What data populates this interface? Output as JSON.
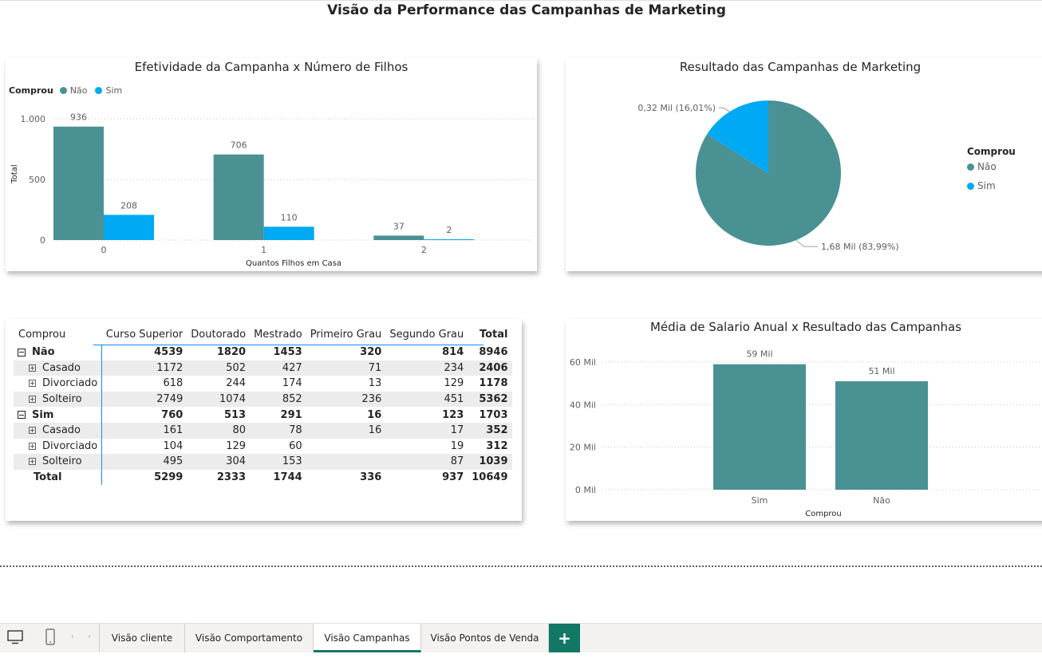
{
  "page": {
    "title": "Visão da Performance das Campanhas de Marketing"
  },
  "colors": {
    "nao": "#4a9194",
    "sim": "#00a9f4",
    "accent": "#117865"
  },
  "bar_card": {
    "title": "Efetividade da Campanha x Número de Filhos",
    "legend_title": "Comprou",
    "legend_items": [
      "Não",
      "Sim"
    ]
  },
  "pie_card": {
    "title": "Resultado das Campanhas de Marketing",
    "legend_title": "Comprou",
    "legend_items": [
      "Não",
      "Sim"
    ]
  },
  "matrix_card": {
    "headers": [
      "Comprou",
      "Curso Superior",
      "Doutorado",
      "Mestrado",
      "Primeiro Grau",
      "Segundo Grau",
      "Total"
    ],
    "rows": [
      {
        "label": "Não",
        "level": 0,
        "values": [
          "4539",
          "1820",
          "1453",
          "320",
          "814",
          "8946"
        ]
      },
      {
        "label": "Casado",
        "level": 1,
        "values": [
          "1172",
          "502",
          "427",
          "71",
          "234",
          "2406"
        ]
      },
      {
        "label": "Divorciado",
        "level": 1,
        "values": [
          "618",
          "244",
          "174",
          "13",
          "129",
          "1178"
        ]
      },
      {
        "label": "Solteiro",
        "level": 1,
        "values": [
          "2749",
          "1074",
          "852",
          "236",
          "451",
          "5362"
        ]
      },
      {
        "label": "Sim",
        "level": 0,
        "values": [
          "760",
          "513",
          "291",
          "16",
          "123",
          "1703"
        ]
      },
      {
        "label": "Casado",
        "level": 1,
        "values": [
          "161",
          "80",
          "78",
          "16",
          "17",
          "352"
        ]
      },
      {
        "label": "Divorciado",
        "level": 1,
        "values": [
          "104",
          "129",
          "60",
          "",
          "19",
          "312"
        ]
      },
      {
        "label": "Solteiro",
        "level": 1,
        "values": [
          "495",
          "304",
          "153",
          "",
          "87",
          "1039"
        ]
      },
      {
        "label": "Total",
        "level": 2,
        "values": [
          "5299",
          "2333",
          "1744",
          "336",
          "937",
          "10649"
        ]
      }
    ]
  },
  "salary_card": {
    "title": "Média de Salario Anual x Resultado das Campanhas"
  },
  "tabs": {
    "items": [
      "Visão cliente",
      "Visão Comportamento",
      "Visão Campanhas",
      "Visão Pontos de Venda"
    ],
    "active": "Visão Campanhas",
    "add_label": "+"
  },
  "chart_data": [
    {
      "type": "bar",
      "title": "Efetividade da Campanha x Número de Filhos",
      "xlabel": "Quantos Filhos em Casa",
      "ylabel": "Total",
      "categories": [
        "0",
        "1",
        "2"
      ],
      "series": [
        {
          "name": "Não",
          "values": [
            936,
            706,
            37
          ]
        },
        {
          "name": "Sim",
          "values": [
            208,
            110,
            2
          ]
        }
      ],
      "data_labels": [
        [
          "936",
          "706",
          "37"
        ],
        [
          "208",
          "110",
          "2"
        ]
      ],
      "ylim": [
        0,
        1000
      ],
      "yticks": [
        0,
        500,
        1000
      ],
      "ytick_labels": [
        "0",
        "500",
        "1.000"
      ],
      "legend_title": "Comprou",
      "legend": "top-left",
      "grid": true
    },
    {
      "type": "pie",
      "title": "Resultado das Campanhas de Marketing",
      "categories": [
        "Não",
        "Sim"
      ],
      "values": [
        1680,
        320
      ],
      "data_labels": [
        "1,68 Mil (83,99%)",
        "0,32 Mil (16,01%)"
      ],
      "legend_title": "Comprou",
      "legend": "right"
    },
    {
      "type": "bar",
      "title": "Média de Salario Anual x Resultado das Campanhas",
      "xlabel": "Comprou",
      "ylabel": "",
      "categories": [
        "Sim",
        "Não"
      ],
      "values": [
        59,
        51
      ],
      "data_labels": [
        "59 Mil",
        "51 Mil"
      ],
      "ylim": [
        0,
        60
      ],
      "yticks": [
        0,
        20,
        40,
        60
      ],
      "ytick_labels": [
        "0 Mil",
        "20 Mil",
        "40 Mil",
        "60 Mil"
      ],
      "grid": true
    }
  ]
}
